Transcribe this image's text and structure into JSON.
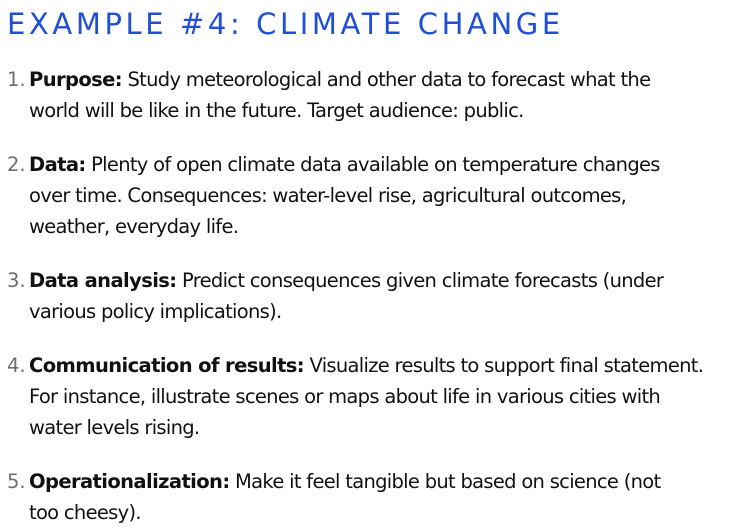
{
  "slide": {
    "title": "EXAMPLE #4: CLIMATE CHANGE",
    "title_color": "#1f4fd6",
    "items": [
      {
        "number": "1.",
        "label": "Purpose:",
        "line1": " Study meteorological and other data to forecast what the",
        "line2": "world will be like in the future. Target audience: public.",
        "line3": ""
      },
      {
        "number": "2.",
        "label": "Data:",
        "line1": " Plenty of open climate data available on temperature changes",
        "line2": "over time. Consequences: water-level rise, agricultural outcomes,",
        "line3": "weather, everyday life."
      },
      {
        "number": "3.",
        "label": "Data analysis:",
        "line1": " Predict consequences given climate forecasts (under",
        "line2": "various policy implications).",
        "line3": ""
      },
      {
        "number": "4.",
        "label": "Communication of results:",
        "line1": " Visualize results to support final statement.",
        "line2": "For instance, illustrate scenes or maps about life in various cities with",
        "line3": "water levels rising."
      },
      {
        "number": "5.",
        "label": "Operationalization:",
        "line1": " Make it feel tangible but based on science (not",
        "line2": "too cheesy).",
        "line3": ""
      }
    ]
  }
}
